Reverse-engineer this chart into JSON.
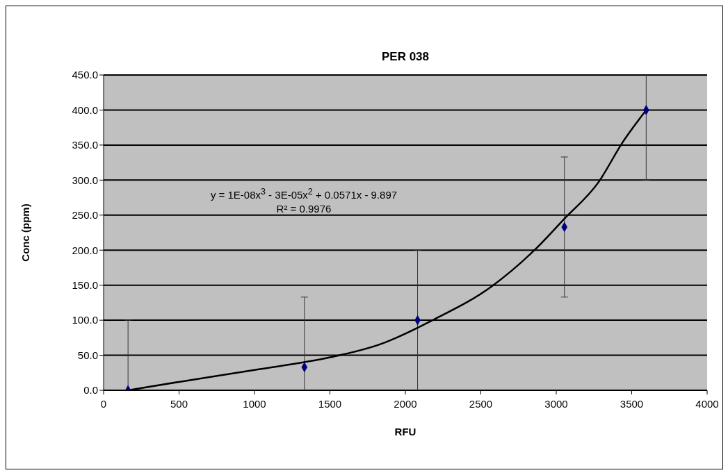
{
  "chart_data": {
    "type": "scatter",
    "title": "PER 038",
    "xlabel": "RFU",
    "ylabel": "Conc (ppm)",
    "xlim": [
      0,
      4000
    ],
    "xticks": [
      0,
      500,
      1000,
      1500,
      2000,
      2500,
      3000,
      3500,
      4000
    ],
    "ylim": [
      0,
      450
    ],
    "yticks": [
      {
        "value": 0,
        "label": "0.0"
      },
      {
        "value": 50,
        "label": "50.0"
      },
      {
        "value": 100,
        "label": "100.0"
      },
      {
        "value": 150,
        "label": "150.0"
      },
      {
        "value": 200,
        "label": "200.0"
      },
      {
        "value": 250,
        "label": "250.0"
      },
      {
        "value": 300,
        "label": "300.0"
      },
      {
        "value": 350,
        "label": "350.0"
      },
      {
        "value": 400,
        "label": "400.0"
      },
      {
        "value": 450,
        "label": "450.0"
      }
    ],
    "grid": "y",
    "legend": false,
    "annotations": [
      "y = 1E-08x$^{3}$ - 3E-05x$^{2}$ + 0.0571x - 9.897",
      "R² = 0.9976"
    ],
    "series": [
      {
        "color": "#000080",
        "marker": "diamond",
        "x": [
          162,
          1331,
          2081,
          3054,
          3596
        ],
        "values": [
          0,
          33,
          100,
          233,
          400
        ],
        "errors": [
          100,
          100,
          100,
          100,
          100
        ]
      },
      {
        "type": "line",
        "color": "#000000",
        "marker": "none",
        "line_style": "solid",
        "x": [
          162,
          500,
          1000,
          1500,
          1850,
          1940,
          2180,
          2570,
          2860,
          3050,
          3280,
          3440,
          3596
        ],
        "values": [
          0,
          12,
          29,
          47,
          67,
          75,
          100,
          148,
          201,
          244,
          297,
          354,
          400
        ]
      }
    ]
  }
}
